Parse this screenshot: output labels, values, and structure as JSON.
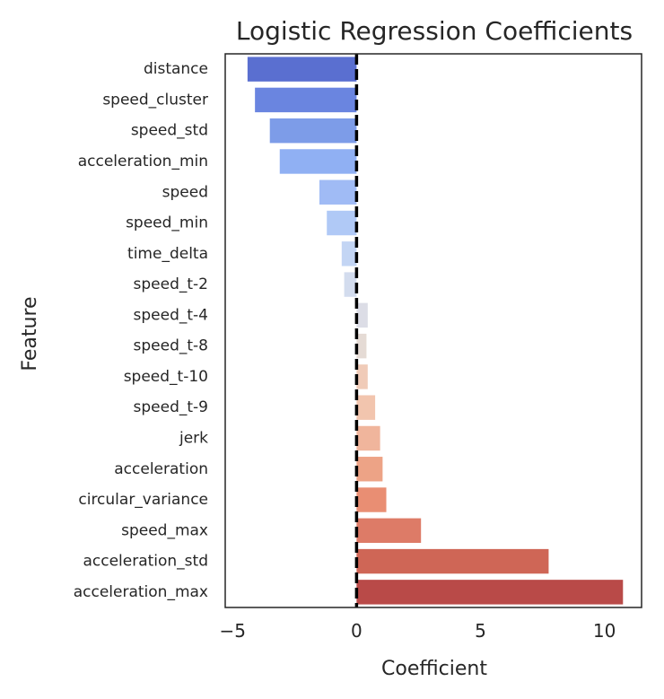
{
  "chart_data": {
    "type": "bar",
    "orientation": "horizontal",
    "title": "Logistic Regression Coefficients",
    "xlabel": "Coefficient",
    "ylabel": "Feature",
    "xlim": [
      -5.3,
      11.5
    ],
    "xticks": [
      -5,
      0,
      5,
      10
    ],
    "xtick_labels": [
      "−5",
      "0",
      "5",
      "10"
    ],
    "grid": false,
    "legend": "none",
    "reference_line": {
      "x": 0,
      "style": "dashed",
      "color": "#000000"
    },
    "colormap": "coolwarm",
    "categories": [
      "distance",
      "speed_cluster",
      "speed_std",
      "acceleration_min",
      "speed",
      "speed_min",
      "time_delta",
      "speed_t-2",
      "speed_t-4",
      "speed_t-8",
      "speed_t-10",
      "speed_t-9",
      "jerk",
      "acceleration",
      "circular_variance",
      "speed_max",
      "acceleration_std",
      "acceleration_max"
    ],
    "values": [
      -4.4,
      -4.1,
      -3.5,
      -3.1,
      -1.5,
      -1.2,
      -0.6,
      -0.5,
      0.45,
      0.4,
      0.45,
      0.75,
      0.95,
      1.05,
      1.2,
      2.6,
      7.75,
      10.75
    ],
    "colors": [
      "#5a6fd0",
      "#6a85e0",
      "#7d9ce8",
      "#90b0f3",
      "#a0bbf5",
      "#b0c9f6",
      "#c3d5f4",
      "#d3dcee",
      "#dcdde6",
      "#e5dbd5",
      "#f0cbb8",
      "#f2c5ae",
      "#f0b59c",
      "#eda386",
      "#e98e73",
      "#dd7b67",
      "#cf6656",
      "#b94a48"
    ]
  }
}
